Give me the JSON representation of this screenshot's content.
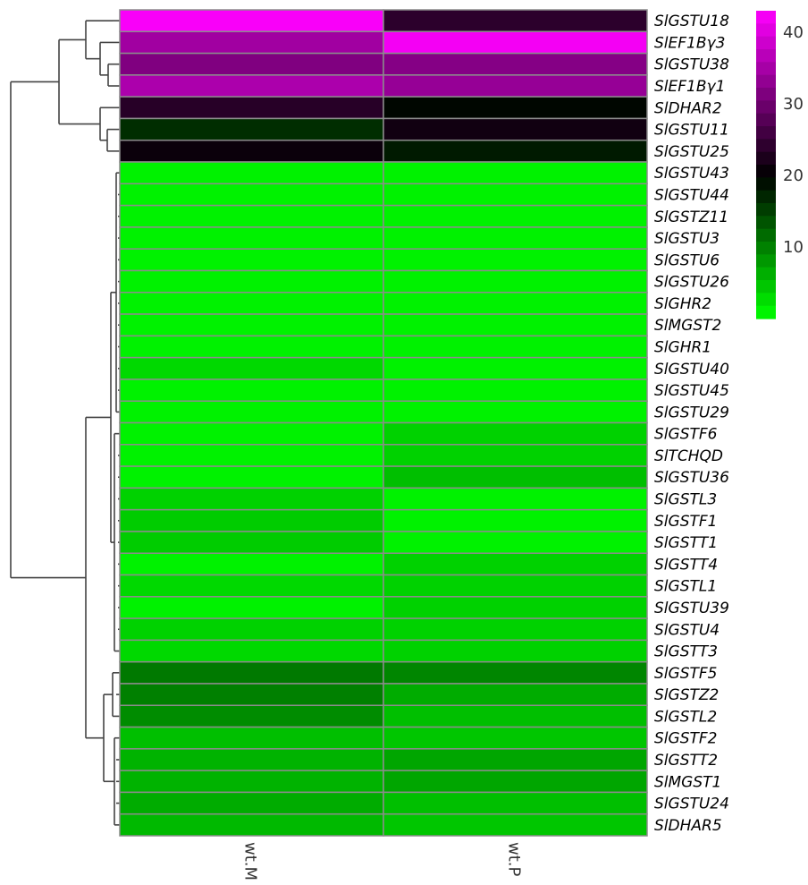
{
  "chart_data": {
    "type": "heatmap",
    "columns": [
      "wt.M",
      "wt.P"
    ],
    "rows": [
      {
        "gene": "SlGSTU18",
        "values": [
          42.5,
          24.0
        ]
      },
      {
        "gene": "SlEF1Bγ3",
        "values": [
          34.5,
          42.0
        ]
      },
      {
        "gene": "SlGSTU38",
        "values": [
          31.5,
          32.0
        ]
      },
      {
        "gene": "SlEF1Bγ1",
        "values": [
          35.5,
          33.5
        ]
      },
      {
        "gene": "SlDHAR2",
        "values": [
          23.5,
          19.5
        ]
      },
      {
        "gene": "SlGSTU11",
        "values": [
          16.5,
          21.5
        ]
      },
      {
        "gene": "SlGSTU25",
        "values": [
          21.0,
          18.0
        ]
      },
      {
        "gene": "SlGSTU43",
        "values": [
          1.0,
          1.0
        ]
      },
      {
        "gene": "SlGSTU44",
        "values": [
          1.0,
          1.0
        ]
      },
      {
        "gene": "SlGSTZ11",
        "values": [
          1.0,
          1.0
        ]
      },
      {
        "gene": "SlGSTU3",
        "values": [
          1.0,
          1.0
        ]
      },
      {
        "gene": "SlGSTU6",
        "values": [
          1.0,
          1.0
        ]
      },
      {
        "gene": "SlGSTU26",
        "values": [
          1.0,
          1.0
        ]
      },
      {
        "gene": "SlGHR2",
        "values": [
          1.0,
          1.0
        ]
      },
      {
        "gene": "SlMGST2",
        "values": [
          1.0,
          1.0
        ]
      },
      {
        "gene": "SlGHR1",
        "values": [
          1.0,
          1.0
        ]
      },
      {
        "gene": "SlGSTU40",
        "values": [
          3.0,
          1.0
        ]
      },
      {
        "gene": "SlGSTU45",
        "values": [
          1.0,
          1.0
        ]
      },
      {
        "gene": "SlGSTU29",
        "values": [
          1.0,
          1.0
        ]
      },
      {
        "gene": "SlGSTF6",
        "values": [
          1.0,
          3.5
        ]
      },
      {
        "gene": "SlTCHQD",
        "values": [
          1.0,
          3.5
        ]
      },
      {
        "gene": "SlGSTU36",
        "values": [
          1.0,
          5.0
        ]
      },
      {
        "gene": "SlGSTL3",
        "values": [
          3.5,
          1.0
        ]
      },
      {
        "gene": "SlGSTF1",
        "values": [
          4.0,
          1.0
        ]
      },
      {
        "gene": "SlGSTT1",
        "values": [
          4.0,
          1.0
        ]
      },
      {
        "gene": "SlGSTT4",
        "values": [
          1.0,
          3.5
        ]
      },
      {
        "gene": "SlGSTL1",
        "values": [
          3.0,
          3.5
        ]
      },
      {
        "gene": "SlGSTU39",
        "values": [
          1.0,
          3.5
        ]
      },
      {
        "gene": "SlGSTU4",
        "values": [
          3.5,
          3.5
        ]
      },
      {
        "gene": "SlGSTT3",
        "values": [
          3.0,
          3.5
        ]
      },
      {
        "gene": "SlGSTF5",
        "values": [
          10.5,
          9.5
        ]
      },
      {
        "gene": "SlGSTZ2",
        "values": [
          10.0,
          6.5
        ]
      },
      {
        "gene": "SlGSTL2",
        "values": [
          9.0,
          5.0
        ]
      },
      {
        "gene": "SlGSTF2",
        "values": [
          5.0,
          4.5
        ]
      },
      {
        "gene": "SlGSTT2",
        "values": [
          6.0,
          7.0
        ]
      },
      {
        "gene": "SlMGST1",
        "values": [
          6.0,
          7.0
        ]
      },
      {
        "gene": "SlGSTU24",
        "values": [
          6.5,
          5.0
        ]
      },
      {
        "gene": "SlDHAR5",
        "values": [
          5.5,
          4.5
        ]
      }
    ],
    "color_scale": {
      "domain": [
        0,
        20,
        43
      ],
      "colors": [
        "#00ff00",
        "#000000",
        "#ff00ff"
      ]
    },
    "legend": {
      "ticks": [
        10,
        20,
        30,
        40
      ],
      "range": [
        0,
        43
      ],
      "position": "top-right"
    },
    "dendrogram": {
      "side": "left",
      "clusters": [
        [
          "SlGSTU18",
          "SlEF1Bγ3",
          "SlGSTU38",
          "SlEF1Bγ1"
        ],
        [
          "SlDHAR2",
          "SlGSTU11",
          "SlGSTU25"
        ],
        [
          "SlGSTU43",
          "SlGSTU44",
          "SlGSTZ11",
          "SlGSTU3",
          "SlGSTU6",
          "SlGSTU26",
          "SlGHR2",
          "SlMGST2",
          "SlGHR1",
          "SlGSTU40",
          "SlGSTU45",
          "SlGSTU29",
          "SlGSTF6",
          "SlTCHQD",
          "SlGSTU36",
          "SlGSTL3",
          "SlGSTF1",
          "SlGSTT1",
          "SlGSTT4",
          "SlGSTL1",
          "SlGSTU39",
          "SlGSTU4",
          "SlGSTT3"
        ],
        [
          "SlGSTF5",
          "SlGSTZ2",
          "SlGSTL2",
          "SlGSTF2",
          "SlGSTT2",
          "SlMGST1",
          "SlGSTU24",
          "SlDHAR5"
        ]
      ]
    }
  }
}
